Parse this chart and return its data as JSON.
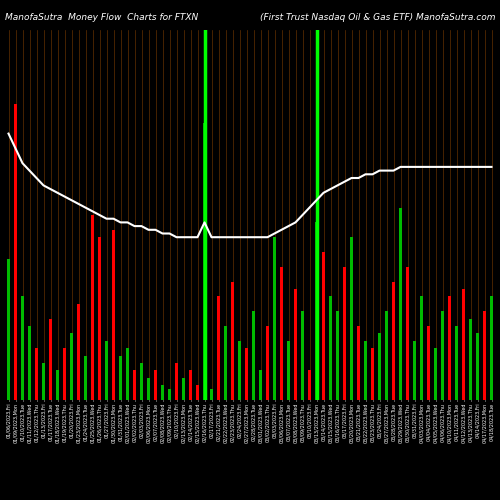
{
  "title_left": "ManofaSutra  Money Flow  Charts for FTXN",
  "title_right": "(First Trust Nasdaq Oil & Gas ETF) ManofaSutra.com",
  "background_color": "#000000",
  "bar_colors": [
    "green",
    "red",
    "green",
    "green",
    "red",
    "green",
    "red",
    "green",
    "red",
    "green",
    "red",
    "green",
    "red",
    "red",
    "green",
    "red",
    "green",
    "green",
    "red",
    "green",
    "green",
    "red",
    "green",
    "green",
    "red",
    "green",
    "red",
    "red",
    "green",
    "green",
    "red",
    "green",
    "red",
    "green",
    "red",
    "green",
    "green",
    "red",
    "green",
    "red",
    "green",
    "red",
    "green",
    "red",
    "green",
    "red",
    "green",
    "green",
    "red",
    "green",
    "red",
    "green",
    "red",
    "green",
    "green",
    "red",
    "green",
    "red",
    "green",
    "green",
    "red",
    "green",
    "green",
    "red",
    "green",
    "red",
    "green",
    "green",
    "red",
    "green"
  ],
  "bar_heights": [
    38,
    80,
    28,
    20,
    14,
    10,
    22,
    8,
    14,
    18,
    26,
    12,
    50,
    44,
    16,
    46,
    12,
    14,
    8,
    10,
    6,
    8,
    4,
    3,
    10,
    6,
    8,
    4,
    75,
    3,
    28,
    20,
    32,
    16,
    14,
    24,
    8,
    20,
    44,
    36,
    16,
    30,
    24,
    8,
    48,
    40,
    28,
    24,
    36,
    44,
    20,
    16,
    14,
    18,
    24,
    32,
    52,
    36,
    16,
    28,
    20,
    14,
    24,
    28,
    20,
    30,
    22,
    18,
    24,
    28
  ],
  "white_line": [
    72,
    68,
    64,
    62,
    60,
    58,
    57,
    56,
    55,
    54,
    53,
    52,
    51,
    50,
    49,
    49,
    48,
    48,
    47,
    47,
    46,
    46,
    45,
    45,
    44,
    44,
    44,
    44,
    48,
    44,
    44,
    44,
    44,
    44,
    44,
    44,
    44,
    44,
    45,
    46,
    47,
    48,
    50,
    52,
    54,
    56,
    57,
    58,
    59,
    60,
    60,
    61,
    61,
    62,
    62,
    62,
    63,
    63,
    63,
    63,
    63,
    63,
    63,
    63,
    63,
    63,
    63,
    63,
    63,
    63
  ],
  "bright_green_indices": [
    28,
    44
  ],
  "n_bars": 70,
  "ylim_max": 100,
  "tick_fontsize": 3.5,
  "title_fontsize": 6.5,
  "tick_labels": [
    "01/06/2023,Fri",
    "01/09/2023,Mon",
    "01/10/2023,Tue",
    "01/11/2023,Wed",
    "01/12/2023,Thu",
    "01/13/2023,Fri",
    "01/17/2023,Tue",
    "01/18/2023,Wed",
    "01/19/2023,Thu",
    "01/20/2023,Fri",
    "01/23/2023,Mon",
    "01/24/2023,Tue",
    "01/25/2023,Wed",
    "01/26/2023,Thu",
    "01/27/2023,Fri",
    "01/30/2023,Mon",
    "01/31/2023,Tue",
    "02/01/2023,Wed",
    "02/02/2023,Thu",
    "02/03/2023,Fri",
    "02/06/2023,Mon",
    "02/07/2023,Tue",
    "02/08/2023,Wed",
    "02/09/2023,Thu",
    "02/10/2023,Fri",
    "02/13/2023,Mon",
    "02/14/2023,Tue",
    "02/15/2023,Wed",
    "02/16/2023,Thu",
    "02/17/2023,Fri",
    "02/21/2023,Tue",
    "02/22/2023,Wed",
    "02/23/2023,Thu",
    "02/24/2023,Fri",
    "02/27/2023,Mon",
    "02/28/2023,Tue",
    "03/01/2023,Wed",
    "03/02/2023,Thu",
    "03/03/2023,Fri",
    "03/06/2023,Mon",
    "03/07/2023,Tue",
    "03/08/2023,Wed",
    "03/09/2023,Thu",
    "03/10/2023,Fri",
    "03/13/2023,Mon",
    "03/14/2023,Tue",
    "03/15/2023,Wed",
    "03/16/2023,Thu",
    "03/17/2023,Fri",
    "03/20/2023,Mon",
    "03/21/2023,Tue",
    "03/22/2023,Wed",
    "03/23/2023,Thu",
    "03/24/2023,Fri",
    "03/27/2023,Mon",
    "03/28/2023,Tue",
    "03/29/2023,Wed",
    "03/30/2023,Thu",
    "03/31/2023,Fri",
    "04/03/2023,Mon",
    "04/04/2023,Tue",
    "04/05/2023,Wed",
    "04/06/2023,Thu",
    "04/10/2023,Mon",
    "04/11/2023,Tue",
    "04/12/2023,Wed",
    "04/13/2023,Thu",
    "04/14/2023,Fri",
    "04/17/2023,Mon",
    "04/18/2023,Tue"
  ],
  "orange_line_color": "#8B4500",
  "bright_green_color": "#00FF00",
  "white_line_color": "#FFFFFF",
  "red_bar_color": "#FF0000",
  "green_bar_color": "#00BB00"
}
